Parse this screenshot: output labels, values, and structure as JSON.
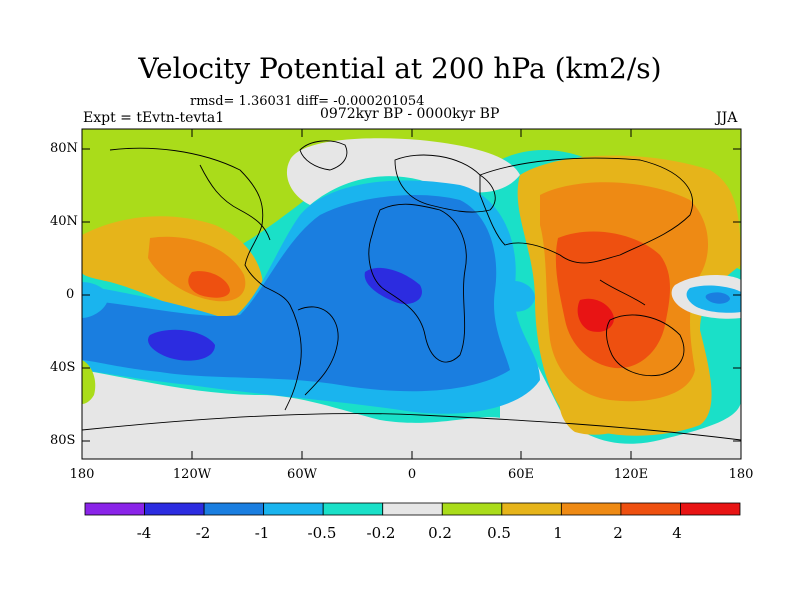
{
  "title": "Velocity Potential at 200 hPa (km2/s)",
  "stats": "rmsd= 1.36031 diff= -0.000201054",
  "experiment": "Expt = tEvtn-tevta1",
  "period": "0972kyr BP - 0000kyr BP",
  "season": "JJA",
  "map": {
    "y_ticks": [
      "80N",
      "40N",
      "0",
      "40S",
      "80S"
    ],
    "x_ticks": [
      "180",
      "120W",
      "60W",
      "0",
      "60E",
      "120E",
      "180"
    ]
  },
  "colorbar": {
    "colors": [
      "#8a24e8",
      "#2c2ce0",
      "#1a7ee0",
      "#1ab4ee",
      "#1ae0c8",
      "#e6e6e6",
      "#aadc1a",
      "#e6b41a",
      "#ee8a14",
      "#ee5010",
      "#e81414"
    ],
    "labels": [
      "-4",
      "-2",
      "-1",
      "-0.5",
      "-0.2",
      "0.2",
      "0.5",
      "1",
      "2",
      "4"
    ]
  }
}
